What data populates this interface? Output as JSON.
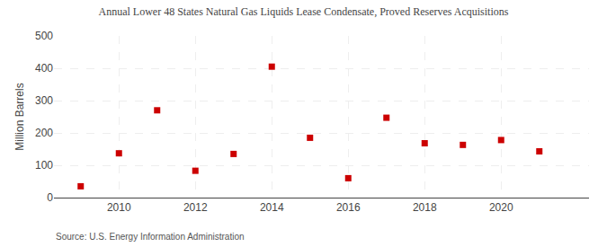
{
  "chart_data": {
    "type": "scatter",
    "title": "Annual Lower 48 States Natural Gas Liquids Lease Condensate, Proved Reserves Acquisitions",
    "ylabel": "Million Barrels",
    "source": "Source: U.S. Energy Information Administration",
    "x": [
      2009,
      2010,
      2011,
      2012,
      2013,
      2014,
      2015,
      2016,
      2017,
      2018,
      2019,
      2020,
      2021
    ],
    "values": [
      35,
      137,
      270,
      83,
      135,
      405,
      185,
      60,
      247,
      168,
      163,
      178,
      143
    ],
    "color": "#cc0000",
    "marker": "square",
    "xlim": [
      2008.3,
      2022.3
    ],
    "xticks": [
      2010,
      2012,
      2014,
      2016,
      2018,
      2020
    ],
    "ylim": [
      0,
      500
    ],
    "yticks": [
      0,
      100,
      200,
      300,
      400,
      500
    ],
    "grid": true
  }
}
